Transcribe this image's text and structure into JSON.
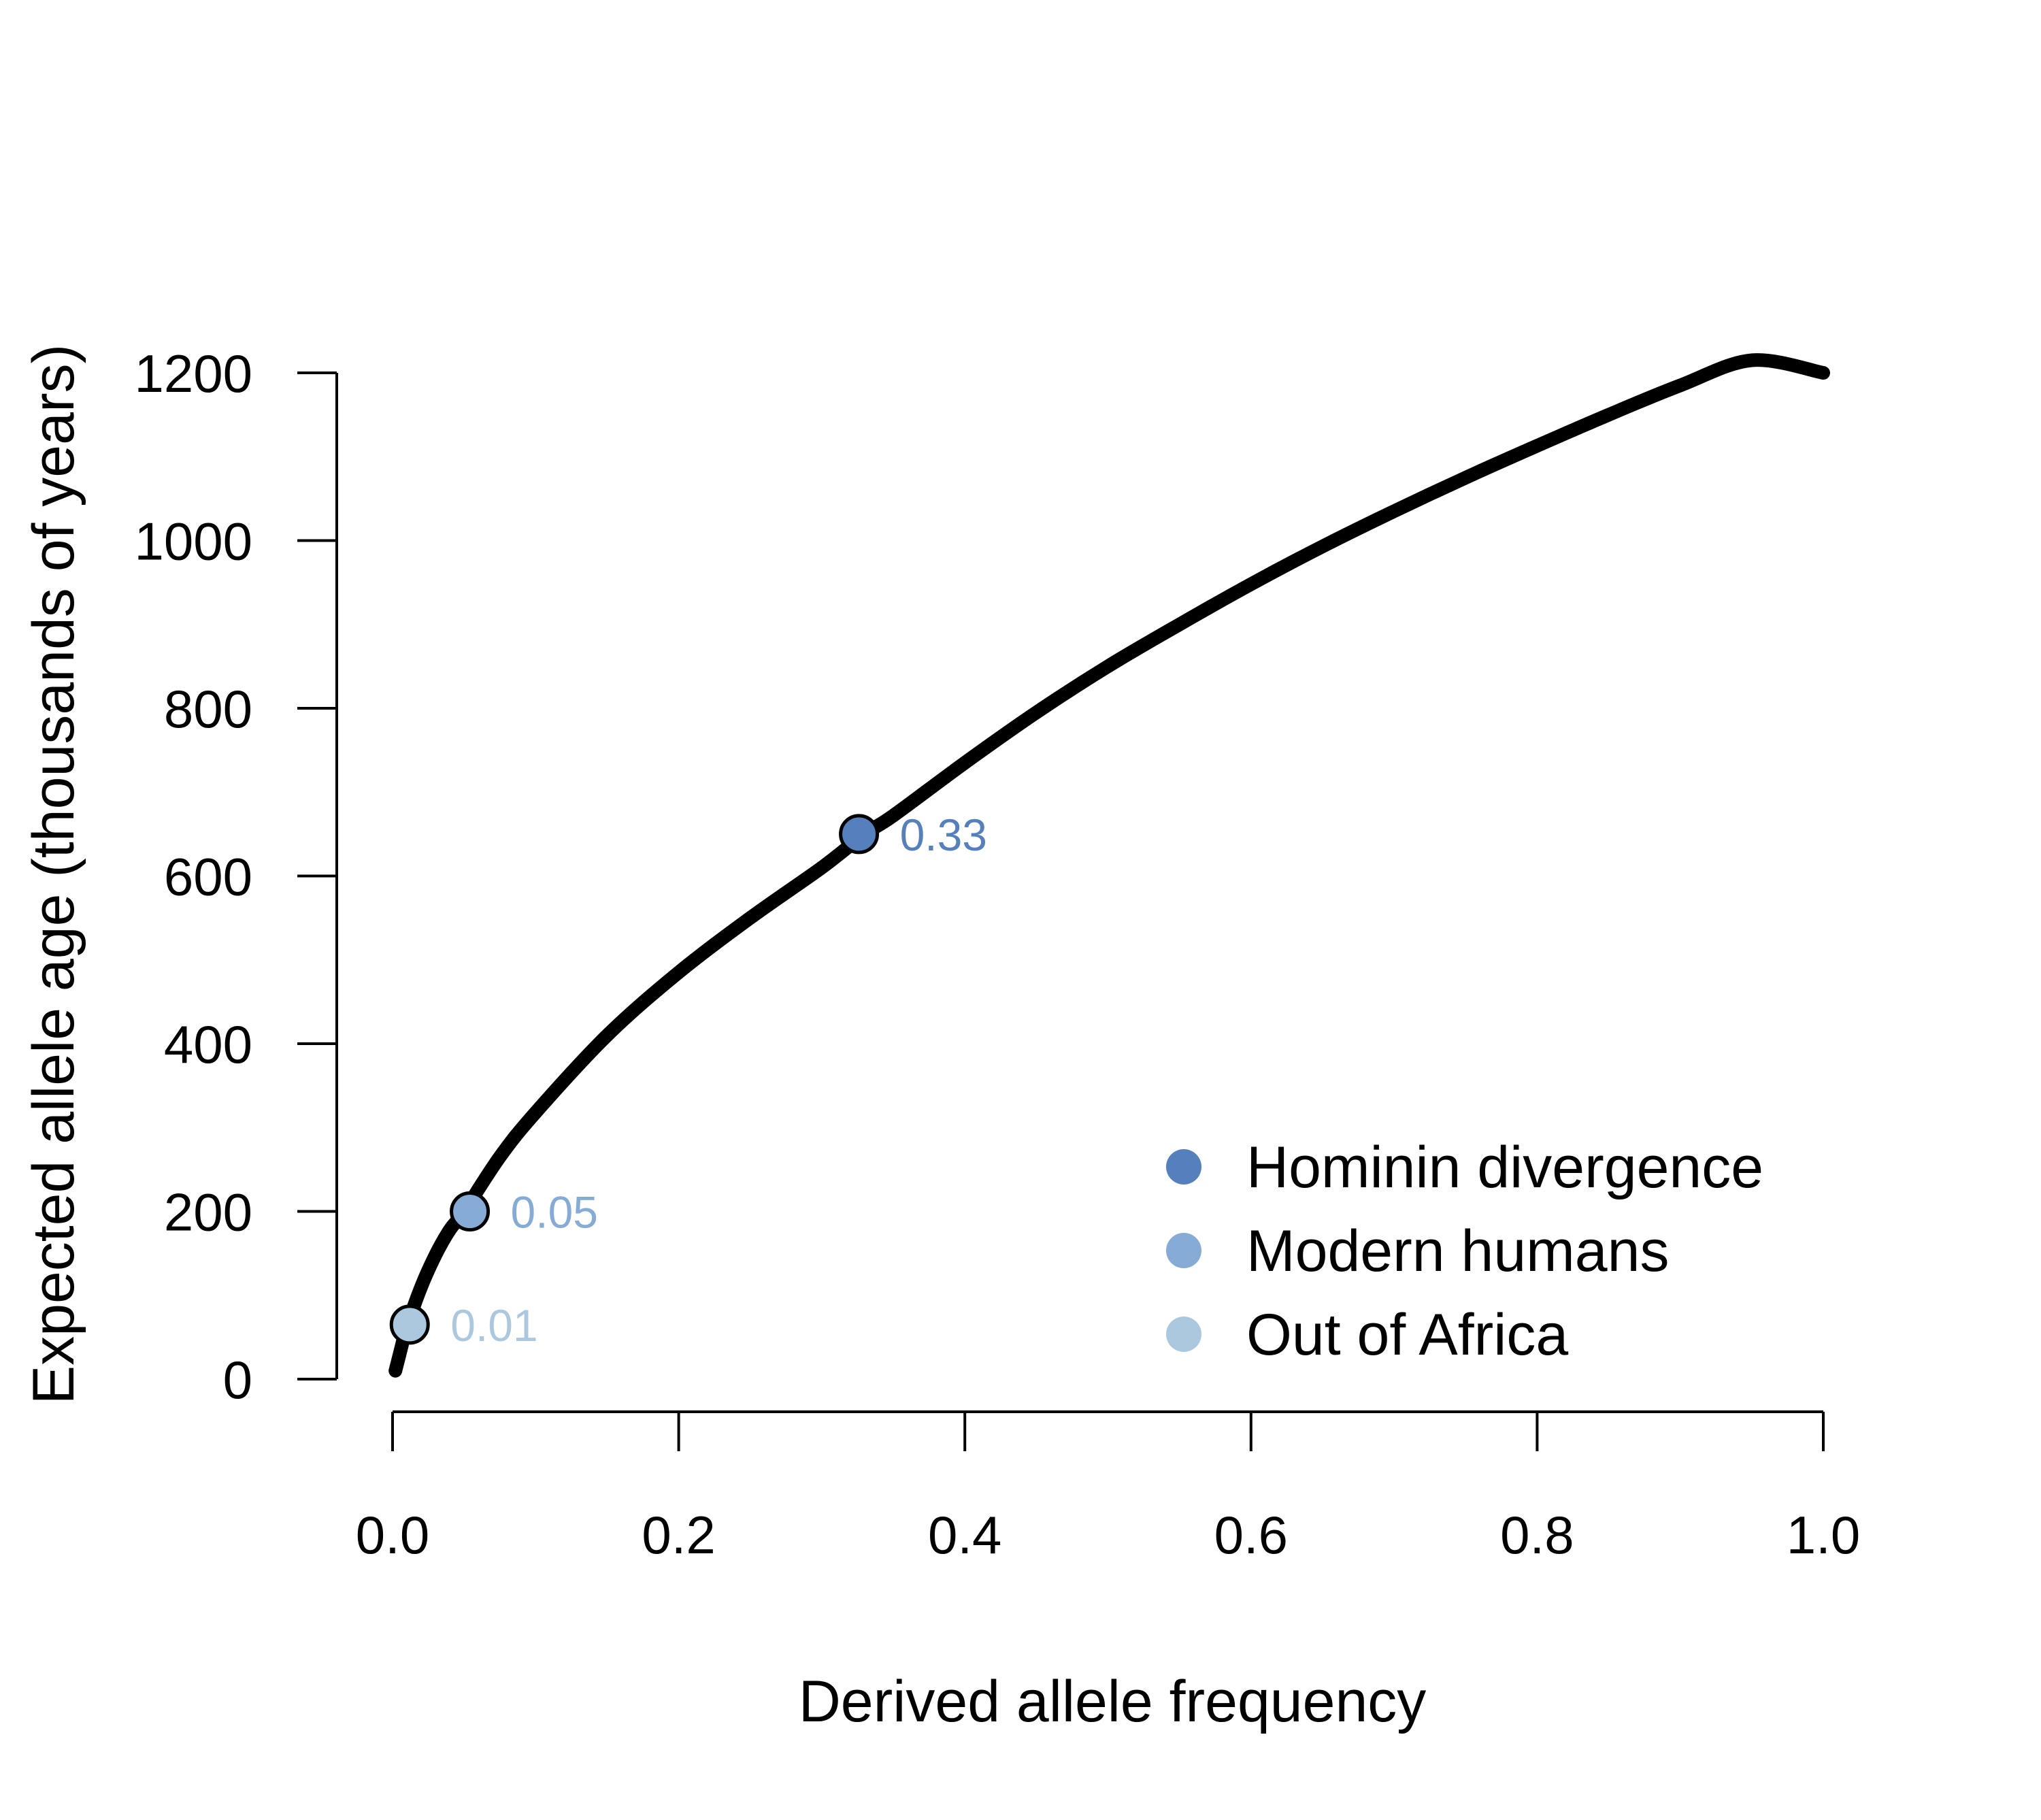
{
  "chart_data": {
    "type": "line",
    "xlabel": "Derived allele frequency",
    "ylabel": "Expected allele age (thousands of years)",
    "xlim": [
      0,
      1
    ],
    "ylim": [
      0,
      1200
    ],
    "xticks": [
      0,
      0.2,
      0.4,
      0.6,
      0.8,
      1.0
    ],
    "xtick_labels": [
      "0.0",
      "0.2",
      "0.4",
      "0.6",
      "0.8",
      "1.0"
    ],
    "yticks": [
      0,
      200,
      400,
      600,
      800,
      1000,
      1200
    ],
    "ytick_labels": [
      "0",
      "200",
      "400",
      "600",
      "800",
      "1000",
      "1200"
    ],
    "grid": false,
    "legend_position": "bottom-right",
    "curve": {
      "x": [
        0.002,
        0.005,
        0.01,
        0.02,
        0.03,
        0.04,
        0.05,
        0.075,
        0.1,
        0.15,
        0.2,
        0.25,
        0.3,
        0.33,
        0.35,
        0.4,
        0.45,
        0.5,
        0.55,
        0.6,
        0.65,
        0.7,
        0.75,
        0.8,
        0.85,
        0.9,
        0.95,
        1.0
      ],
      "y": [
        10,
        30,
        62,
        110,
        148,
        178,
        200,
        265,
        318,
        410,
        485,
        550,
        610,
        650,
        672,
        735,
        795,
        850,
        900,
        948,
        993,
        1035,
        1075,
        1113,
        1150,
        1185,
        1215,
        1200
      ]
    },
    "points": [
      {
        "name": "Out of Africa",
        "label": "0.01",
        "x": 0.012,
        "y": 65,
        "color": "#acc8df"
      },
      {
        "name": "Modern humans",
        "label": "0.05",
        "x": 0.054,
        "y": 200,
        "color": "#86abd4"
      },
      {
        "name": "Hominin divergence",
        "label": "0.33",
        "x": 0.326,
        "y": 650,
        "color": "#5580bb"
      }
    ],
    "legend": [
      {
        "name": "Hominin divergence",
        "color": "#5580bb"
      },
      {
        "name": "Modern humans",
        "color": "#86abd4"
      },
      {
        "name": "Out of Africa",
        "color": "#acc8df"
      }
    ]
  }
}
